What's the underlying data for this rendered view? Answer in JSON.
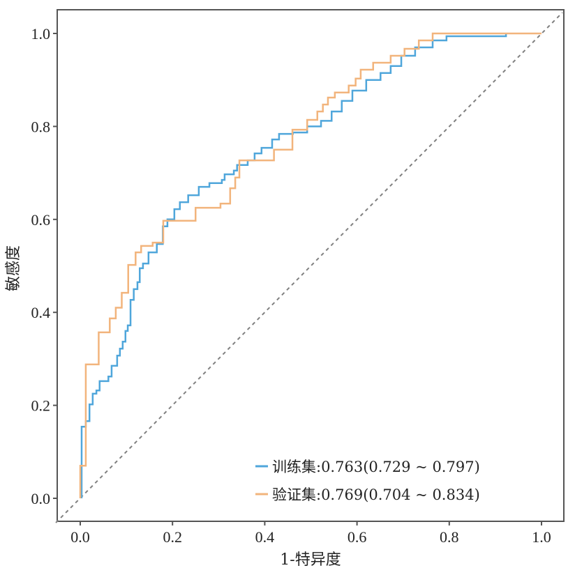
{
  "chart_data": {
    "type": "line",
    "title": "",
    "xlabel": "1-特异度",
    "ylabel": "敏感度",
    "xlim": [
      0,
      1
    ],
    "ylim": [
      0,
      1
    ],
    "xticks": [
      "0.0",
      "0.2",
      "0.4",
      "0.6",
      "0.8",
      "1.0"
    ],
    "yticks": [
      "0.0",
      "0.2",
      "0.4",
      "0.6",
      "0.8",
      "1.0"
    ],
    "grid": false,
    "legend_position": "bottom-right",
    "reference_line": {
      "from": [
        0,
        0
      ],
      "to": [
        1,
        1
      ],
      "style": "dashed",
      "color": "#808080"
    },
    "series": [
      {
        "name": "训练集",
        "legend_label": "训练集:0.763(0.729 ~ 0.797)",
        "auc": 0.763,
        "ci": [
          0.729,
          0.797
        ],
        "color": "#4fa6db",
        "points": [
          [
            0.003,
            0.0
          ],
          [
            0.003,
            0.07
          ],
          [
            0.003,
            0.154
          ],
          [
            0.012,
            0.166
          ],
          [
            0.02,
            0.202
          ],
          [
            0.027,
            0.225
          ],
          [
            0.035,
            0.232
          ],
          [
            0.042,
            0.252
          ],
          [
            0.061,
            0.262
          ],
          [
            0.068,
            0.285
          ],
          [
            0.08,
            0.307
          ],
          [
            0.086,
            0.322
          ],
          [
            0.092,
            0.337
          ],
          [
            0.098,
            0.36
          ],
          [
            0.103,
            0.372
          ],
          [
            0.109,
            0.427
          ],
          [
            0.116,
            0.45
          ],
          [
            0.124,
            0.465
          ],
          [
            0.129,
            0.495
          ],
          [
            0.136,
            0.505
          ],
          [
            0.148,
            0.529
          ],
          [
            0.166,
            0.547
          ],
          [
            0.179,
            0.585
          ],
          [
            0.189,
            0.6
          ],
          [
            0.204,
            0.622
          ],
          [
            0.216,
            0.637
          ],
          [
            0.234,
            0.652
          ],
          [
            0.257,
            0.67
          ],
          [
            0.28,
            0.678
          ],
          [
            0.307,
            0.685
          ],
          [
            0.313,
            0.697
          ],
          [
            0.333,
            0.705
          ],
          [
            0.34,
            0.717
          ],
          [
            0.363,
            0.727
          ],
          [
            0.378,
            0.742
          ],
          [
            0.393,
            0.754
          ],
          [
            0.416,
            0.772
          ],
          [
            0.431,
            0.784
          ],
          [
            0.461,
            0.787
          ],
          [
            0.492,
            0.8
          ],
          [
            0.522,
            0.812
          ],
          [
            0.545,
            0.832
          ],
          [
            0.567,
            0.855
          ],
          [
            0.59,
            0.877
          ],
          [
            0.62,
            0.9
          ],
          [
            0.651,
            0.915
          ],
          [
            0.673,
            0.93
          ],
          [
            0.696,
            0.952
          ],
          [
            0.726,
            0.97
          ],
          [
            0.764,
            0.985
          ],
          [
            0.794,
            0.994
          ],
          [
            0.923,
            0.997
          ],
          [
            0.923,
            1.0
          ]
        ]
      },
      {
        "name": "验证集",
        "legend_label": "验证集:0.769(0.704 ~ 0.834)",
        "auc": 0.769,
        "ci": [
          0.704,
          0.834
        ],
        "color": "#f2b47c",
        "points": [
          [
            0,
            0
          ],
          [
            0,
            0.07
          ],
          [
            0.012,
            0.288
          ],
          [
            0.04,
            0.357
          ],
          [
            0.064,
            0.387
          ],
          [
            0.077,
            0.41
          ],
          [
            0.09,
            0.442
          ],
          [
            0.104,
            0.502
          ],
          [
            0.12,
            0.529
          ],
          [
            0.132,
            0.543
          ],
          [
            0.157,
            0.55
          ],
          [
            0.18,
            0.597
          ],
          [
            0.25,
            0.625
          ],
          [
            0.304,
            0.634
          ],
          [
            0.325,
            0.667
          ],
          [
            0.336,
            0.69
          ],
          [
            0.345,
            0.727
          ],
          [
            0.42,
            0.75
          ],
          [
            0.46,
            0.793
          ],
          [
            0.492,
            0.814
          ],
          [
            0.514,
            0.832
          ],
          [
            0.526,
            0.847
          ],
          [
            0.537,
            0.862
          ],
          [
            0.552,
            0.873
          ],
          [
            0.582,
            0.888
          ],
          [
            0.597,
            0.903
          ],
          [
            0.608,
            0.922
          ],
          [
            0.635,
            0.937
          ],
          [
            0.673,
            0.952
          ],
          [
            0.703,
            0.967
          ],
          [
            0.734,
            0.985
          ],
          [
            0.764,
            1.0
          ],
          [
            1.0,
            1.0
          ]
        ]
      }
    ]
  }
}
